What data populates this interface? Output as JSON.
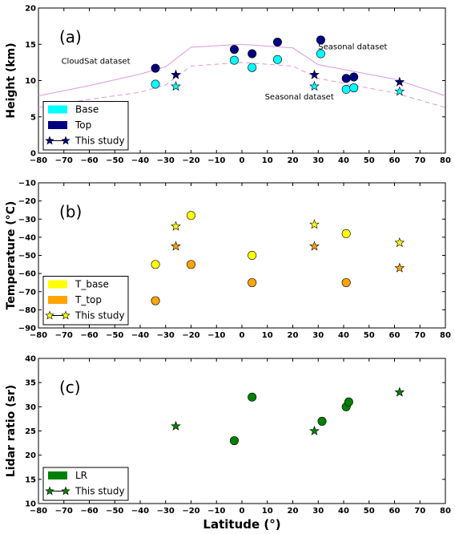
{
  "chart_data": [
    {
      "type": "scatter",
      "panel_label": "(a)",
      "ylabel": "Height (km)",
      "xlabel": "",
      "xlim": [
        -80,
        80
      ],
      "ylim": [
        0,
        20
      ],
      "xticks": [
        -80,
        -70,
        -60,
        -50,
        -40,
        -30,
        -20,
        -10,
        0,
        10,
        20,
        30,
        40,
        50,
        60,
        70,
        80
      ],
      "yticks": [
        0,
        5,
        10,
        15,
        20
      ],
      "legend_position": "lower-left",
      "series": [
        {
          "name": "Base",
          "marker": "circle",
          "color": "#00ffff",
          "x": [
            -34,
            -3,
            4,
            14,
            31,
            41,
            44
          ],
          "y": [
            9.5,
            12.8,
            11.8,
            12.9,
            13.7,
            8.8,
            9.0
          ]
        },
        {
          "name": "Top",
          "marker": "circle",
          "color": "#000080",
          "x": [
            -34,
            -3,
            4,
            14,
            31,
            41,
            44
          ],
          "y": [
            11.7,
            14.3,
            13.7,
            15.3,
            15.6,
            10.3,
            10.5
          ]
        },
        {
          "name": "This study",
          "marker": "star",
          "color": "#000080",
          "role": "top",
          "x": [
            -26,
            28.5,
            62
          ],
          "y": [
            10.8,
            10.8,
            9.8
          ]
        },
        {
          "marker": "star",
          "color": "#00ffff",
          "role": "base",
          "x": [
            -26,
            28.5,
            62
          ],
          "y": [
            9.2,
            9.2,
            8.5
          ]
        }
      ],
      "lines": [
        {
          "color": "#dd99dd",
          "style": "solid",
          "x": [
            -80,
            -60,
            -40,
            -30,
            -20,
            0,
            20,
            30,
            60,
            80
          ],
          "y": [
            7.9,
            9.3,
            10.9,
            11.9,
            14.6,
            15.0,
            14.5,
            12.2,
            10.2,
            7.9
          ]
        },
        {
          "color": "#dd99dd",
          "style": "dashed",
          "x": [
            -80,
            -60,
            -40,
            -30,
            -20,
            0,
            20,
            30,
            60,
            80
          ],
          "y": [
            6.3,
            7.4,
            8.4,
            9.4,
            12.0,
            12.5,
            12.0,
            10.3,
            8.3,
            6.3
          ]
        }
      ],
      "annotations": [
        {
          "text": "CloudSat dataset",
          "x": -71,
          "y": 12.3,
          "color": "#dd99dd"
        },
        {
          "text": "Seasonal dataset",
          "x": 30,
          "y": 14.3,
          "color": "#000000"
        },
        {
          "text": "Seasonal dataset",
          "x": 9,
          "y": 7.4,
          "color": "#000000"
        }
      ]
    },
    {
      "type": "scatter",
      "panel_label": "(b)",
      "ylabel": "Temperature (°C)",
      "xlabel": "",
      "xlim": [
        -80,
        80
      ],
      "ylim": [
        -90,
        -10
      ],
      "xticks": [
        -80,
        -70,
        -60,
        -50,
        -40,
        -30,
        -20,
        -10,
        0,
        10,
        20,
        30,
        40,
        50,
        60,
        70,
        80
      ],
      "yticks": [
        -90,
        -80,
        -70,
        -60,
        -50,
        -40,
        -30,
        -20,
        -10
      ],
      "legend_position": "lower-left",
      "series": [
        {
          "name": "T_base",
          "marker": "circle",
          "color": "#ffff00",
          "x": [
            -34,
            -20,
            4,
            41
          ],
          "y": [
            -55,
            -28,
            -50,
            -38
          ]
        },
        {
          "name": "T_top",
          "marker": "circle",
          "color": "#ffa500",
          "x": [
            -34,
            -20,
            4,
            41
          ],
          "y": [
            -75,
            -55,
            -65,
            -65
          ]
        },
        {
          "name": "This study",
          "marker": "star",
          "color": "#ffff00",
          "role": "base",
          "x": [
            -26,
            28.5,
            62
          ],
          "y": [
            -34,
            -33,
            -43
          ]
        },
        {
          "marker": "star",
          "color": "#ffa500",
          "role": "top",
          "x": [
            -26,
            28.5,
            62
          ],
          "y": [
            -45,
            -45,
            -57
          ]
        }
      ],
      "lines": [],
      "annotations": []
    },
    {
      "type": "scatter",
      "panel_label": "(c)",
      "ylabel": "Lidar ratio (sr)",
      "xlabel": "Latitude (°)",
      "xlim": [
        -80,
        80
      ],
      "ylim": [
        10,
        40
      ],
      "xticks": [
        -80,
        -70,
        -60,
        -50,
        -40,
        -30,
        -20,
        -10,
        0,
        10,
        20,
        30,
        40,
        50,
        60,
        70,
        80
      ],
      "yticks": [
        10,
        15,
        20,
        25,
        30,
        35,
        40
      ],
      "legend_position": "lower-left",
      "series": [
        {
          "name": "LR",
          "marker": "circle",
          "color": "#008000",
          "x": [
            -3,
            4,
            31.5,
            41,
            42
          ],
          "y": [
            23,
            32,
            27,
            30,
            31
          ]
        },
        {
          "name": "This study",
          "marker": "star",
          "color": "#008000",
          "x": [
            -26,
            28.5,
            62
          ],
          "y": [
            26,
            25,
            33
          ]
        }
      ],
      "lines": [],
      "annotations": []
    }
  ]
}
